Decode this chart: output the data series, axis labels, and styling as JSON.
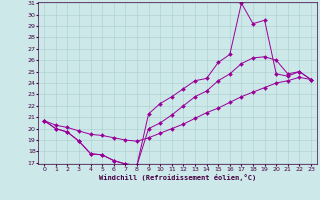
{
  "xlabel": "Windchill (Refroidissement éolien,°C)",
  "bg_color": "#cce8e8",
  "line_color": "#990099",
  "grid_color": "#aacccc",
  "spine_color": "#440044",
  "ylim": [
    17,
    31
  ],
  "xlim": [
    -0.5,
    23.5
  ],
  "yticks": [
    17,
    18,
    19,
    20,
    21,
    22,
    23,
    24,
    25,
    26,
    27,
    28,
    29,
    30,
    31
  ],
  "xticks": [
    0,
    1,
    2,
    3,
    4,
    5,
    6,
    7,
    8,
    9,
    10,
    11,
    12,
    13,
    14,
    15,
    16,
    17,
    18,
    19,
    20,
    21,
    22,
    23
  ],
  "line1_x": [
    0,
    1,
    2,
    3,
    4,
    5,
    6,
    7,
    8,
    9,
    10,
    11,
    12,
    13,
    14,
    15,
    16,
    17,
    18,
    19,
    20,
    21,
    22,
    23
  ],
  "line1_y": [
    20.7,
    20.0,
    19.7,
    18.9,
    17.8,
    17.7,
    17.2,
    16.9,
    16.8,
    21.3,
    22.2,
    22.8,
    23.5,
    24.2,
    24.4,
    25.8,
    26.5,
    31.0,
    29.2,
    29.5,
    24.8,
    24.6,
    25.0,
    24.3
  ],
  "line2_x": [
    0,
    1,
    2,
    3,
    4,
    5,
    6,
    7,
    8,
    9,
    10,
    11,
    12,
    13,
    14,
    15,
    16,
    17,
    18,
    19,
    20,
    21,
    22,
    23
  ],
  "line2_y": [
    20.7,
    20.0,
    19.7,
    18.9,
    17.8,
    17.7,
    17.2,
    16.9,
    16.8,
    20.0,
    20.5,
    21.2,
    22.0,
    22.8,
    23.3,
    24.2,
    24.8,
    25.7,
    26.2,
    26.3,
    26.0,
    24.8,
    25.0,
    24.3
  ],
  "line3_x": [
    0,
    1,
    2,
    3,
    4,
    5,
    6,
    7,
    8,
    9,
    10,
    11,
    12,
    13,
    14,
    15,
    16,
    17,
    18,
    19,
    20,
    21,
    22,
    23
  ],
  "line3_y": [
    20.7,
    20.3,
    20.1,
    19.8,
    19.5,
    19.4,
    19.2,
    19.0,
    18.9,
    19.2,
    19.6,
    20.0,
    20.4,
    20.9,
    21.4,
    21.8,
    22.3,
    22.8,
    23.2,
    23.6,
    24.0,
    24.2,
    24.5,
    24.3
  ]
}
